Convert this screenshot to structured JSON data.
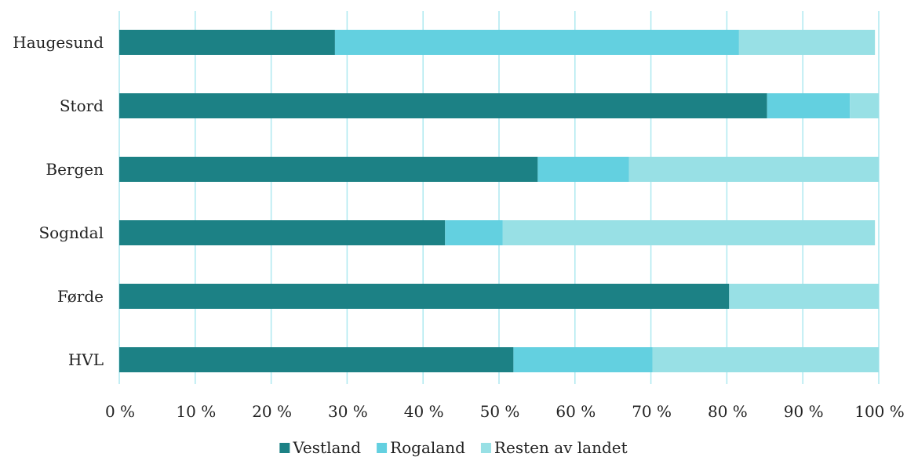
{
  "chart_data": {
    "type": "bar",
    "orientation": "horizontal",
    "stacked": true,
    "title": "",
    "xlabel": "",
    "ylabel": "",
    "xlim": [
      0,
      100
    ],
    "x_ticks": [
      "0 %",
      "10 %",
      "20 %",
      "30 %",
      "40 %",
      "50 %",
      "60 %",
      "70 %",
      "80 %",
      "90 %",
      "100 %"
    ],
    "categories": [
      "Haugesund",
      "Stord",
      "Bergen",
      "Sogndal",
      "Førde",
      "HVL"
    ],
    "series": [
      {
        "name": "Vestland",
        "color": "#1c8185",
        "values": [
          28.4,
          85.3,
          55.1,
          42.9,
          80.3,
          51.9
        ]
      },
      {
        "name": "Rogaland",
        "color": "#63d0e0",
        "values": [
          53.2,
          10.9,
          12.0,
          7.6,
          0.0,
          18.3
        ]
      },
      {
        "name": "Resten av landet",
        "color": "#98e0e5",
        "values": [
          17.9,
          3.8,
          32.9,
          49.0,
          19.7,
          29.8
        ]
      }
    ],
    "grid": {
      "vertical": true,
      "color": "#aee9f0"
    },
    "legend": {
      "position": "bottom",
      "entries": [
        "Vestland",
        "Rogaland",
        "Resten av landet"
      ]
    }
  }
}
